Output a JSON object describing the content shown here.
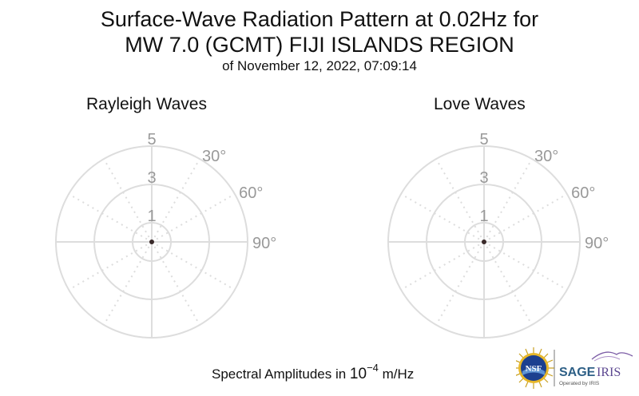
{
  "header": {
    "title_line1": "Surface-Wave Radiation Pattern at 0.02Hz for",
    "title_line2": "MW 7.0 (GCMT) FIJI ISLANDS REGION",
    "subtitle": "of November 12, 2022, 07:09:14"
  },
  "footer": {
    "prefix": "Spectral Amplitudes in ",
    "base": "10",
    "exponent": "−4",
    "unit": " m/Hz"
  },
  "logos": {
    "nsf": "NSF",
    "sage": "SAGE",
    "iris": "IRIS",
    "operated": "Operated by IRIS"
  },
  "colors": {
    "grid": "#dddddd",
    "tick_text": "#999999",
    "data_point": "#3a2a2a"
  },
  "chart_data": [
    {
      "type": "polar",
      "title": "Rayleigh Waves",
      "radial_ticks": [
        "1",
        "3",
        "5"
      ],
      "radial_tick_values": [
        1,
        3,
        5
      ],
      "angle_ticks": [
        "30°",
        "60°",
        "90°"
      ],
      "angle_tick_values": [
        30,
        60,
        90
      ],
      "rlim": [
        0,
        5
      ],
      "values": [
        {
          "theta": 0,
          "r": 0
        }
      ],
      "grid": true
    },
    {
      "type": "polar",
      "title": "Love Waves",
      "radial_ticks": [
        "1",
        "3",
        "5"
      ],
      "radial_tick_values": [
        1,
        3,
        5
      ],
      "angle_ticks": [
        "30°",
        "60°",
        "90°"
      ],
      "angle_tick_values": [
        30,
        60,
        90
      ],
      "rlim": [
        0,
        5
      ],
      "values": [
        {
          "theta": 0,
          "r": 0
        }
      ],
      "grid": true
    }
  ]
}
